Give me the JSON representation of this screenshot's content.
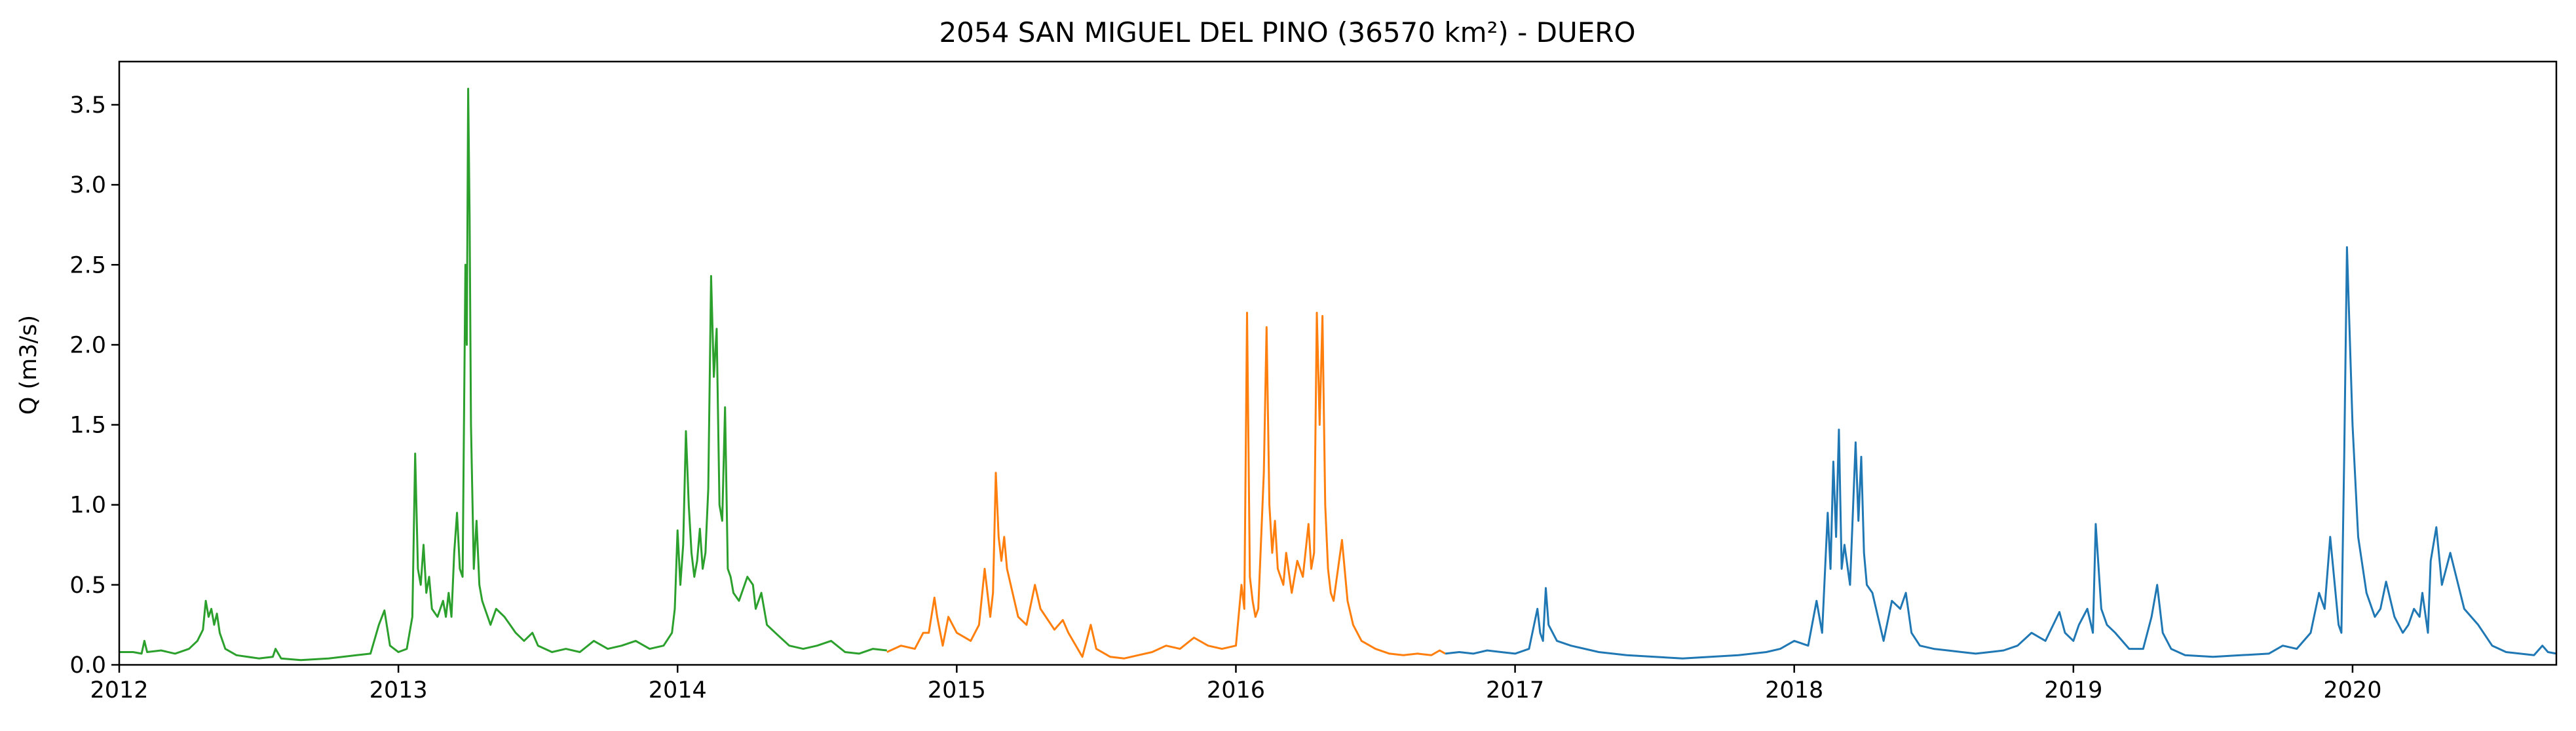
{
  "chart_data": {
    "type": "line",
    "title": "2054 SAN MIGUEL DEL PINO (36570 km²) - DUERO",
    "xlabel": "",
    "ylabel": "Q (m3/s)",
    "xlim": [
      2012.0,
      2020.73
    ],
    "ylim": [
      0.0,
      3.77
    ],
    "grid": false,
    "x_ticks": [
      "2012",
      "2013",
      "2014",
      "2015",
      "2016",
      "2017",
      "2018",
      "2019",
      "2020"
    ],
    "y_ticks": [
      "0.0",
      "0.5",
      "1.0",
      "1.5",
      "2.0",
      "2.5",
      "3.0",
      "3.5"
    ],
    "colors": {
      "green": "#2ca02c",
      "orange": "#ff7f0e",
      "blue": "#1f77b4",
      "axes": "#000000"
    },
    "series": [
      {
        "color": "#2ca02c",
        "x": [
          2012.0,
          2012.05,
          2012.08,
          2012.09,
          2012.1,
          2012.15,
          2012.2,
          2012.25,
          2012.28,
          2012.3,
          2012.31,
          2012.32,
          2012.33,
          2012.34,
          2012.35,
          2012.36,
          2012.38,
          2012.42,
          2012.5,
          2012.55,
          2012.56,
          2012.58,
          2012.65,
          2012.75,
          2012.85,
          2012.9,
          2012.93,
          2012.95,
          2012.97,
          2013.0,
          2013.03,
          2013.05,
          2013.06,
          2013.07,
          2013.08,
          2013.09,
          2013.1,
          2013.11,
          2013.12,
          2013.14,
          2013.16,
          2013.17,
          2013.18,
          2013.19,
          2013.2,
          2013.21,
          2013.22,
          2013.23,
          2013.24,
          2013.245,
          2013.25,
          2013.255,
          2013.26,
          2013.27,
          2013.28,
          2013.29,
          2013.3,
          2013.31,
          2013.32,
          2013.33,
          2013.35,
          2013.38,
          2013.4,
          2013.42,
          2013.45,
          2013.48,
          2013.5,
          2013.55,
          2013.6,
          2013.65,
          2013.7,
          2013.75,
          2013.8,
          2013.85,
          2013.9,
          2013.95,
          2013.98,
          2013.99,
          2014.0,
          2014.01,
          2014.02,
          2014.03,
          2014.04,
          2014.05,
          2014.06,
          2014.07,
          2014.08,
          2014.09,
          2014.1,
          2014.11,
          2014.12,
          2014.13,
          2014.14,
          2014.15,
          2014.16,
          2014.17,
          2014.18,
          2014.19,
          2014.2,
          2014.22,
          2014.25,
          2014.27,
          2014.28,
          2014.3,
          2014.32,
          2014.35,
          2014.4,
          2014.45,
          2014.5,
          2014.55,
          2014.6,
          2014.65,
          2014.7,
          2014.75
        ],
        "y": [
          0.08,
          0.08,
          0.07,
          0.15,
          0.08,
          0.09,
          0.07,
          0.1,
          0.15,
          0.22,
          0.4,
          0.3,
          0.35,
          0.25,
          0.32,
          0.2,
          0.1,
          0.06,
          0.04,
          0.05,
          0.1,
          0.04,
          0.03,
          0.04,
          0.06,
          0.07,
          0.25,
          0.34,
          0.12,
          0.08,
          0.1,
          0.3,
          1.32,
          0.6,
          0.5,
          0.75,
          0.45,
          0.55,
          0.35,
          0.3,
          0.4,
          0.3,
          0.45,
          0.3,
          0.7,
          0.95,
          0.6,
          0.55,
          2.5,
          2.0,
          3.6,
          2.8,
          1.5,
          0.6,
          0.9,
          0.5,
          0.4,
          0.35,
          0.3,
          0.25,
          0.35,
          0.3,
          0.25,
          0.2,
          0.15,
          0.2,
          0.12,
          0.08,
          0.1,
          0.08,
          0.15,
          0.1,
          0.12,
          0.15,
          0.1,
          0.12,
          0.2,
          0.35,
          0.84,
          0.5,
          0.75,
          1.46,
          1.0,
          0.7,
          0.55,
          0.65,
          0.85,
          0.6,
          0.7,
          1.1,
          2.43,
          1.8,
          2.1,
          1.0,
          0.9,
          1.61,
          0.6,
          0.55,
          0.45,
          0.4,
          0.55,
          0.5,
          0.35,
          0.45,
          0.25,
          0.2,
          0.12,
          0.1,
          0.12,
          0.15,
          0.08,
          0.07,
          0.1,
          0.09
        ]
      },
      {
        "color": "#ff7f0e",
        "x": [
          2014.75,
          2014.8,
          2014.85,
          2014.88,
          2014.9,
          2014.92,
          2014.93,
          2014.95,
          2014.97,
          2015.0,
          2015.05,
          2015.08,
          2015.1,
          2015.12,
          2015.13,
          2015.14,
          2015.15,
          2015.16,
          2015.17,
          2015.18,
          2015.2,
          2015.22,
          2015.25,
          2015.28,
          2015.3,
          2015.35,
          2015.38,
          2015.4,
          2015.45,
          2015.48,
          2015.5,
          2015.55,
          2015.6,
          2015.65,
          2015.7,
          2015.75,
          2015.8,
          2015.85,
          2015.9,
          2015.95,
          2016.0,
          2016.02,
          2016.03,
          2016.04,
          2016.05,
          2016.06,
          2016.07,
          2016.08,
          2016.1,
          2016.11,
          2016.12,
          2016.13,
          2016.14,
          2016.15,
          2016.17,
          2016.18,
          2016.2,
          2016.22,
          2016.24,
          2016.26,
          2016.27,
          2016.28,
          2016.29,
          2016.3,
          2016.31,
          2016.32,
          2016.33,
          2016.34,
          2016.35,
          2016.38,
          2016.4,
          2016.42,
          2016.45,
          2016.5,
          2016.55,
          2016.6,
          2016.65,
          2016.7,
          2016.73,
          2016.75
        ],
        "y": [
          0.08,
          0.12,
          0.1,
          0.2,
          0.2,
          0.42,
          0.3,
          0.12,
          0.3,
          0.2,
          0.15,
          0.25,
          0.6,
          0.3,
          0.45,
          1.2,
          0.8,
          0.65,
          0.8,
          0.6,
          0.45,
          0.3,
          0.25,
          0.5,
          0.35,
          0.22,
          0.28,
          0.2,
          0.05,
          0.25,
          0.1,
          0.05,
          0.04,
          0.06,
          0.08,
          0.12,
          0.1,
          0.17,
          0.12,
          0.1,
          0.12,
          0.5,
          0.35,
          2.2,
          0.55,
          0.4,
          0.3,
          0.35,
          1.2,
          2.11,
          1.0,
          0.7,
          0.9,
          0.6,
          0.5,
          0.7,
          0.45,
          0.65,
          0.55,
          0.88,
          0.6,
          0.7,
          2.2,
          1.5,
          2.18,
          1.0,
          0.6,
          0.45,
          0.4,
          0.78,
          0.4,
          0.25,
          0.15,
          0.1,
          0.07,
          0.06,
          0.07,
          0.06,
          0.09,
          0.07
        ]
      },
      {
        "color": "#1f77b4",
        "x": [
          2016.75,
          2016.8,
          2016.85,
          2016.9,
          2016.95,
          2017.0,
          2017.05,
          2017.08,
          2017.09,
          2017.1,
          2017.11,
          2017.12,
          2017.15,
          2017.2,
          2017.3,
          2017.4,
          2017.5,
          2017.6,
          2017.7,
          2017.8,
          2017.9,
          2017.95,
          2018.0,
          2018.05,
          2018.08,
          2018.1,
          2018.12,
          2018.13,
          2018.14,
          2018.15,
          2018.16,
          2018.17,
          2018.18,
          2018.2,
          2018.22,
          2018.23,
          2018.24,
          2018.25,
          2018.26,
          2018.28,
          2018.3,
          2018.32,
          2018.35,
          2018.38,
          2018.4,
          2018.42,
          2018.45,
          2018.5,
          2018.55,
          2018.6,
          2018.65,
          2018.7,
          2018.75,
          2018.8,
          2018.85,
          2018.9,
          2018.95,
          2018.97,
          2019.0,
          2019.02,
          2019.05,
          2019.07,
          2019.08,
          2019.1,
          2019.12,
          2019.15,
          2019.2,
          2019.25,
          2019.28,
          2019.3,
          2019.32,
          2019.35,
          2019.4,
          2019.5,
          2019.6,
          2019.7,
          2019.75,
          2019.8,
          2019.85,
          2019.88,
          2019.9,
          2019.92,
          2019.95,
          2019.96,
          2019.97,
          2019.98,
          2020.0,
          2020.02,
          2020.05,
          2020.08,
          2020.1,
          2020.12,
          2020.15,
          2020.18,
          2020.2,
          2020.22,
          2020.24,
          2020.25,
          2020.27,
          2020.28,
          2020.3,
          2020.32,
          2020.35,
          2020.4,
          2020.45,
          2020.5,
          2020.55,
          2020.6,
          2020.65,
          2020.68,
          2020.7,
          2020.73
        ],
        "y": [
          0.07,
          0.08,
          0.07,
          0.09,
          0.08,
          0.07,
          0.1,
          0.35,
          0.2,
          0.15,
          0.48,
          0.25,
          0.15,
          0.12,
          0.08,
          0.06,
          0.05,
          0.04,
          0.05,
          0.06,
          0.08,
          0.1,
          0.15,
          0.12,
          0.4,
          0.2,
          0.95,
          0.6,
          1.27,
          0.8,
          1.47,
          0.6,
          0.75,
          0.5,
          1.39,
          0.9,
          1.3,
          0.7,
          0.5,
          0.45,
          0.3,
          0.15,
          0.4,
          0.35,
          0.45,
          0.2,
          0.12,
          0.1,
          0.09,
          0.08,
          0.07,
          0.08,
          0.09,
          0.12,
          0.2,
          0.15,
          0.33,
          0.2,
          0.15,
          0.25,
          0.35,
          0.2,
          0.88,
          0.35,
          0.25,
          0.2,
          0.1,
          0.1,
          0.3,
          0.5,
          0.2,
          0.1,
          0.06,
          0.05,
          0.06,
          0.07,
          0.12,
          0.1,
          0.2,
          0.45,
          0.35,
          0.8,
          0.25,
          0.2,
          1.3,
          2.61,
          1.5,
          0.8,
          0.45,
          0.3,
          0.35,
          0.52,
          0.3,
          0.2,
          0.25,
          0.35,
          0.3,
          0.45,
          0.2,
          0.65,
          0.86,
          0.5,
          0.7,
          0.35,
          0.25,
          0.12,
          0.08,
          0.07,
          0.06,
          0.12,
          0.08,
          0.07
        ]
      }
    ]
  }
}
